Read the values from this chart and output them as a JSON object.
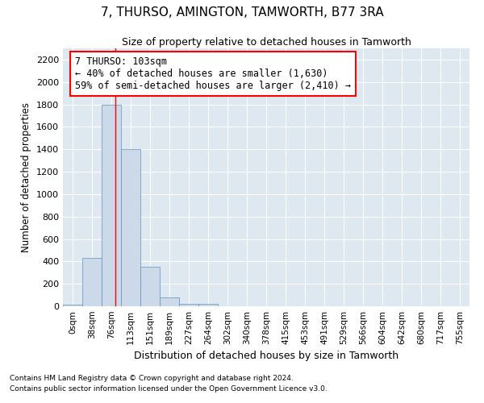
{
  "title": "7, THURSO, AMINGTON, TAMWORTH, B77 3RA",
  "subtitle": "Size of property relative to detached houses in Tamworth",
  "xlabel": "Distribution of detached houses by size in Tamworth",
  "ylabel": "Number of detached properties",
  "bar_color": "#ccd9e8",
  "bar_edge_color": "#6090c0",
  "background_color": "#dde8f0",
  "grid_color": "#ffffff",
  "categories": [
    "0sqm",
    "38sqm",
    "76sqm",
    "113sqm",
    "151sqm",
    "189sqm",
    "227sqm",
    "264sqm",
    "302sqm",
    "340sqm",
    "378sqm",
    "415sqm",
    "453sqm",
    "491sqm",
    "529sqm",
    "566sqm",
    "604sqm",
    "642sqm",
    "680sqm",
    "717sqm",
    "755sqm"
  ],
  "bar_heights": [
    15,
    430,
    1800,
    1400,
    350,
    80,
    25,
    20,
    0,
    0,
    0,
    0,
    0,
    0,
    0,
    0,
    0,
    0,
    0,
    0,
    0
  ],
  "red_line_x": 2.7,
  "annotation_line1": "7 THURSO: 103sqm",
  "annotation_line2": "← 40% of detached houses are smaller (1,630)",
  "annotation_line3": "59% of semi-detached houses are larger (2,410) →",
  "ylim": [
    0,
    2300
  ],
  "yticks": [
    0,
    200,
    400,
    600,
    800,
    1000,
    1200,
    1400,
    1600,
    1800,
    2000,
    2200
  ],
  "footnote1": "Contains HM Land Registry data © Crown copyright and database right 2024.",
  "footnote2": "Contains public sector information licensed under the Open Government Licence v3.0."
}
